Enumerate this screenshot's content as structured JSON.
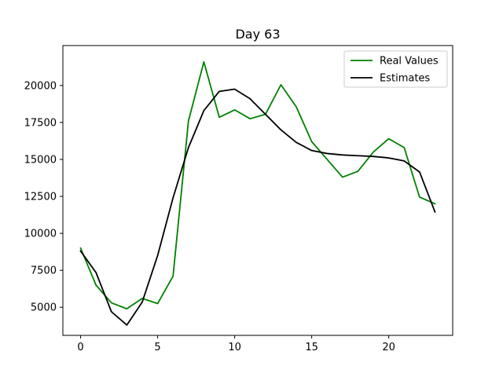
{
  "chart_data": {
    "type": "line",
    "title": "Day 63",
    "xlabel": "",
    "ylabel": "",
    "xlim": [
      -1.15,
      24.15
    ],
    "ylim": [
      3100,
      22700
    ],
    "xticks": [
      0,
      5,
      10,
      15,
      20
    ],
    "yticks": [
      5000,
      7500,
      10000,
      12500,
      15000,
      17500,
      20000
    ],
    "grid": false,
    "legend_position": "top-right",
    "x": [
      0,
      1,
      2,
      3,
      4,
      5,
      6,
      7,
      8,
      9,
      10,
      11,
      12,
      13,
      14,
      15,
      16,
      17,
      18,
      19,
      20,
      21,
      22,
      23
    ],
    "series": [
      {
        "name": "Real Values",
        "color": "#008000",
        "values": [
          9000,
          6500,
          5300,
          4900,
          5600,
          5250,
          7100,
          17600,
          21600,
          17850,
          18350,
          17750,
          18050,
          20050,
          18550,
          16200,
          15000,
          13800,
          14200,
          15500,
          16400,
          15800,
          12450,
          12000
        ]
      },
      {
        "name": "Estimates",
        "color": "#000000",
        "values": [
          8800,
          7350,
          4700,
          3800,
          5350,
          8500,
          12400,
          15800,
          18300,
          19600,
          19750,
          19100,
          18050,
          17000,
          16150,
          15600,
          15400,
          15300,
          15250,
          15200,
          15100,
          14900,
          14150,
          11450
        ]
      }
    ]
  }
}
